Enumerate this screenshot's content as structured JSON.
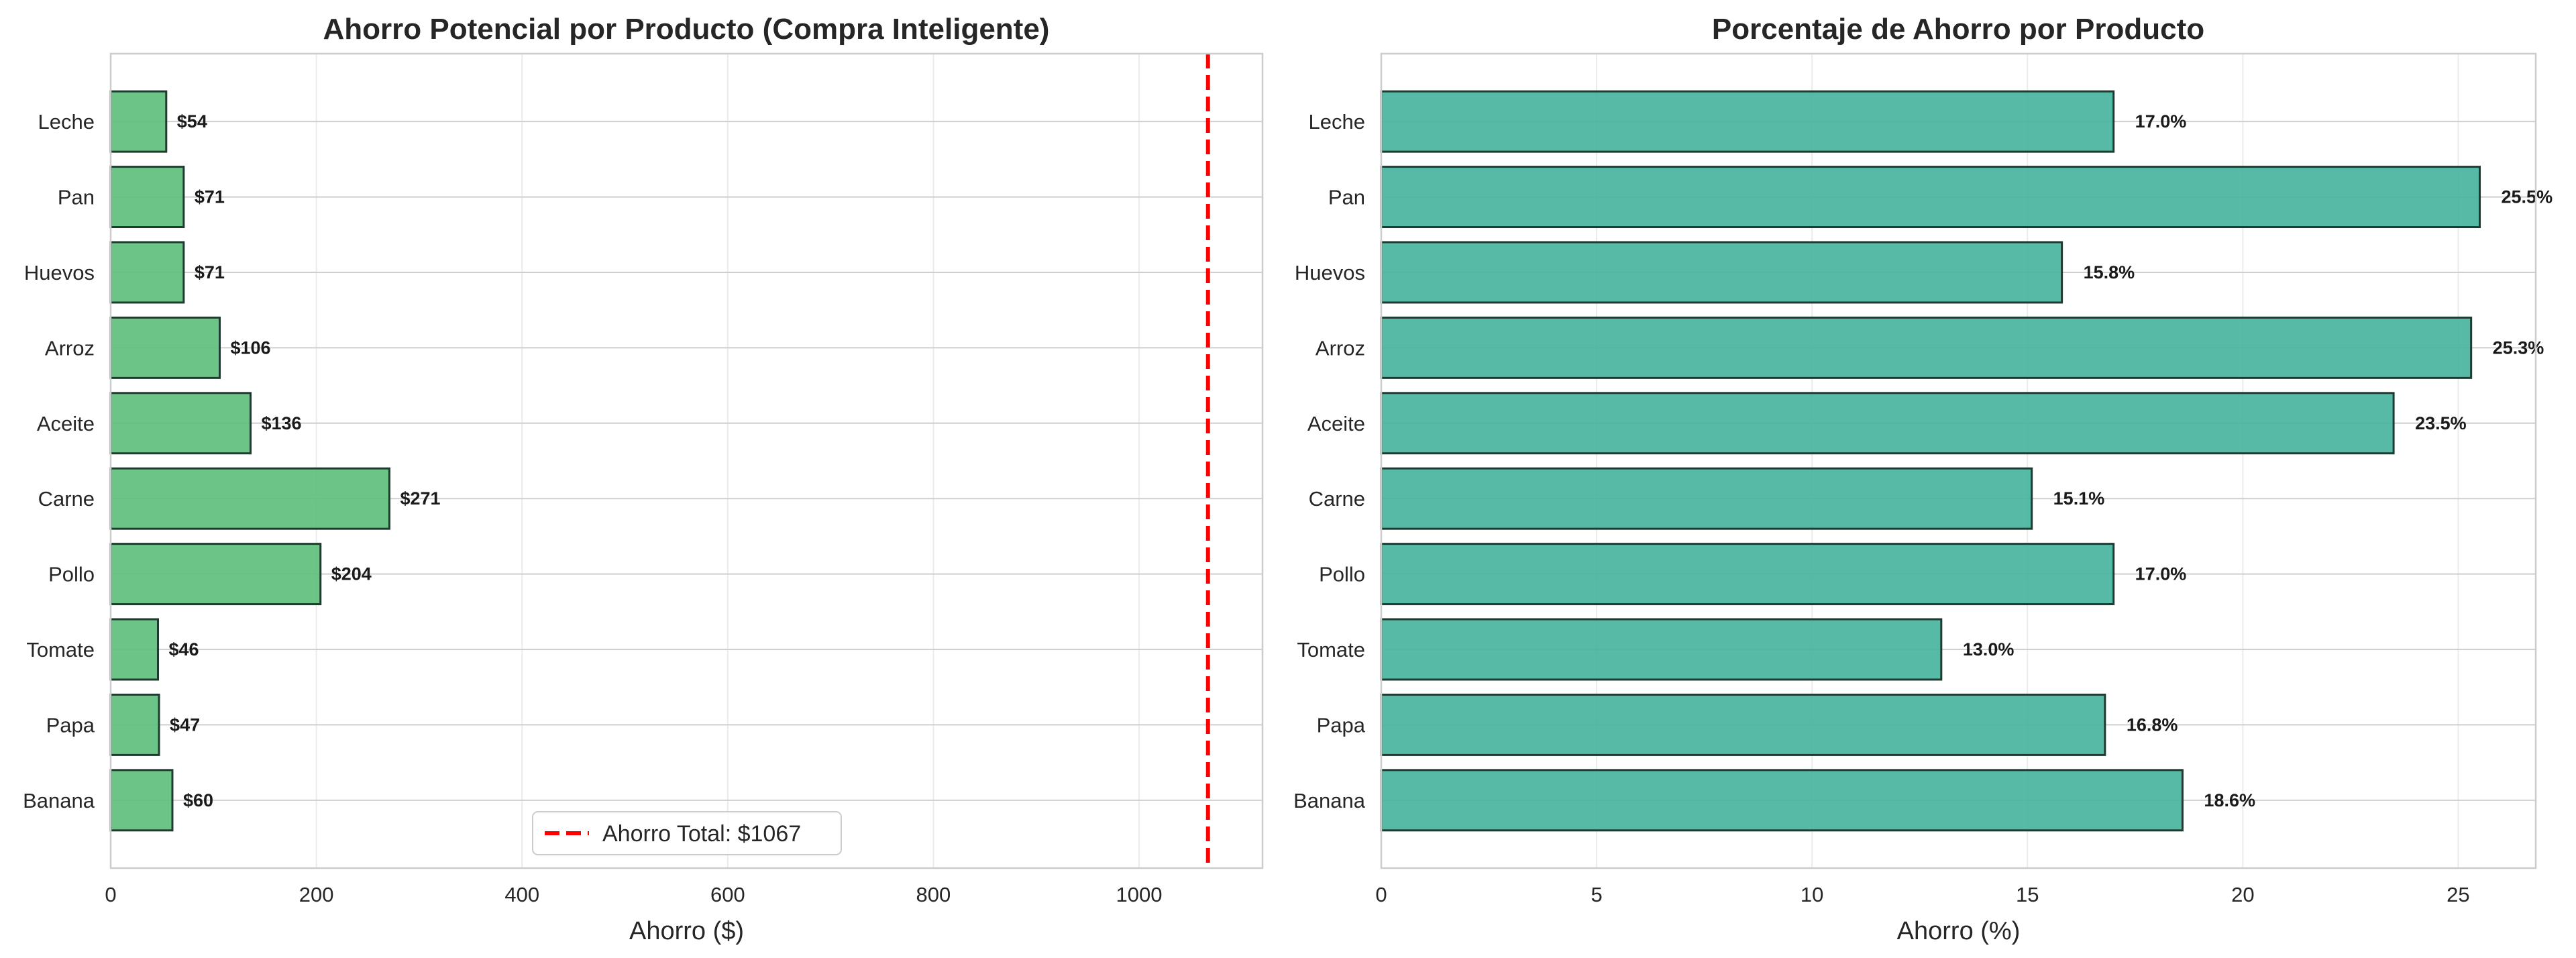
{
  "chart_data": [
    {
      "type": "bar",
      "orientation": "horizontal",
      "title": "Ahorro Potencial por Producto (Compra Inteligente)",
      "xlabel": "Ahorro ($)",
      "ylabel": "",
      "categories": [
        "Leche",
        "Pan",
        "Huevos",
        "Arroz",
        "Aceite",
        "Carne",
        "Pollo",
        "Tomate",
        "Papa",
        "Banana"
      ],
      "values": [
        54,
        71,
        71,
        106,
        136,
        271,
        204,
        46,
        47,
        60
      ],
      "data_labels": [
        "$54",
        "$71",
        "$71",
        "$106",
        "$136",
        "$271",
        "$204",
        "$46",
        "$47",
        "$60"
      ],
      "xlim": [
        0,
        1120
      ],
      "xticks": [
        0,
        200,
        400,
        600,
        800,
        1000
      ],
      "xtick_labels": [
        "0",
        "200",
        "400",
        "600",
        "800",
        "1000"
      ],
      "grid": true,
      "bar_color": "#5cbf7a",
      "reference_line": {
        "value": 1067,
        "color": "#ff0000",
        "style": "dashed",
        "label": "Ahorro Total: $1067"
      },
      "legend": {
        "placement": "lower center",
        "entries": [
          "Ahorro Total: $1067"
        ]
      }
    },
    {
      "type": "bar",
      "orientation": "horizontal",
      "title": "Porcentaje de Ahorro por Producto",
      "xlabel": "Ahorro (%)",
      "ylabel": "",
      "categories": [
        "Leche",
        "Pan",
        "Huevos",
        "Arroz",
        "Aceite",
        "Carne",
        "Pollo",
        "Tomate",
        "Papa",
        "Banana"
      ],
      "values": [
        17.0,
        25.5,
        15.8,
        25.3,
        23.5,
        15.1,
        17.0,
        13.0,
        16.8,
        18.6
      ],
      "data_labels": [
        "17.0%",
        "25.5%",
        "15.8%",
        "25.3%",
        "23.5%",
        "15.1%",
        "17.0%",
        "13.0%",
        "16.8%",
        "18.6%"
      ],
      "xlim": [
        0,
        26.8
      ],
      "xticks": [
        0,
        5,
        10,
        15,
        20,
        25
      ],
      "xtick_labels": [
        "0",
        "5",
        "10",
        "15",
        "20",
        "25"
      ],
      "grid": true,
      "bar_color": "#45b29d"
    }
  ]
}
